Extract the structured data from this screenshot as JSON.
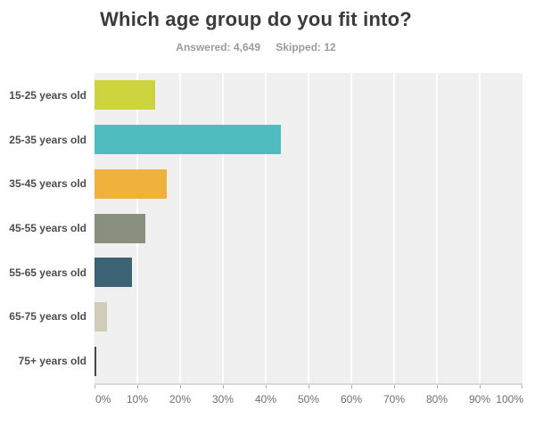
{
  "header": {
    "title": "Which age group do you fit into?",
    "answered_label": "Answered: 4,649",
    "skipped_label": "Skipped: 12"
  },
  "chart_data": {
    "type": "bar",
    "orientation": "horizontal",
    "title": "Which age group do you fit into?",
    "categories": [
      "15-25 years old",
      "25-35 years old",
      "35-45 years old",
      "45-55 years old",
      "55-65 years old",
      "65-75 years old",
      "75+ years old"
    ],
    "values": [
      14.2,
      43.5,
      16.9,
      11.9,
      8.7,
      2.9,
      0.4
    ],
    "values_unit": "percent (estimated from gridlines)",
    "bar_colors": [
      "#cdd43d",
      "#4fbcbf",
      "#efb23c",
      "#89907d",
      "#3b6374",
      "#cfccba",
      "#47473f"
    ],
    "xlabel": "",
    "ylabel": "",
    "xlim": [
      0,
      100
    ],
    "xtick_labels": [
      "0%",
      "10%",
      "20%",
      "30%",
      "40%",
      "50%",
      "60%",
      "70%",
      "80%",
      "90%",
      "100%"
    ],
    "grid": "vertical white gridlines on gray plot background",
    "legend": "none"
  },
  "colors": {
    "title_text": "#3b3b3b",
    "subtitle_text": "#9b9b9b",
    "category_label_text": "#4d4d4d",
    "axis_label_text": "#6e6e6e",
    "plot_background": "#f0f0f0",
    "gridline": "#ffffff",
    "axis_line": "#d9d9d9",
    "page_background": "#ffffff"
  }
}
